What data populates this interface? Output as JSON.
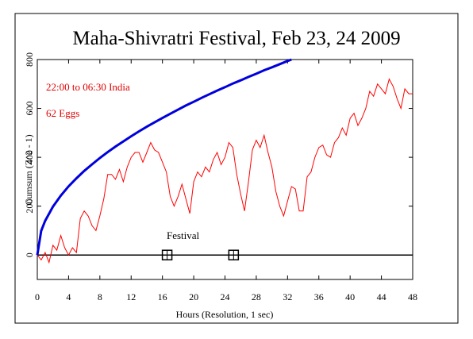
{
  "chart_data": {
    "type": "line",
    "title": "Maha-Shivratri Festival, Feb 23, 24 2009",
    "xlabel": "Hours (Resolution, 1 sec)",
    "ylabel": "Cumsum (Z^2 - 1)",
    "annotations": [
      "22:00 to 06:30 India",
      "62 Eggs",
      "Festival"
    ],
    "xlim": [
      0,
      48
    ],
    "ylim": [
      -100,
      800
    ],
    "xticks": [
      0,
      4,
      8,
      12,
      16,
      20,
      24,
      28,
      32,
      36,
      40,
      44,
      48
    ],
    "yticks": [
      0,
      200,
      400,
      600,
      800
    ],
    "series": [
      {
        "color": "#ff0000",
        "x": [
          0,
          0.5,
          1,
          1.5,
          2,
          2.5,
          3,
          3.5,
          4,
          4.5,
          5,
          5.5,
          6,
          6.5,
          7,
          7.5,
          8,
          8.5,
          9,
          9.5,
          10,
          10.5,
          11,
          11.5,
          12,
          12.5,
          13,
          13.5,
          14,
          14.5,
          15,
          15.5,
          16,
          16.5,
          17,
          17.5,
          18,
          18.5,
          19,
          19.5,
          20,
          20.5,
          21,
          21.5,
          22,
          22.5,
          23,
          23.5,
          24,
          24.5,
          25,
          25.5,
          26,
          26.5,
          27,
          27.5,
          28,
          28.5,
          29,
          29.5,
          30,
          30.5,
          31,
          31.5,
          32,
          32.5,
          33,
          33.5,
          34,
          34.5,
          35,
          35.5,
          36,
          36.5,
          37,
          37.5,
          38,
          38.5,
          39,
          39.5,
          40,
          40.5,
          41,
          41.5,
          42,
          42.5,
          43,
          43.5,
          44,
          44.5,
          45,
          45.5,
          46,
          46.5,
          47,
          47.5,
          48
        ],
        "values": [
          0,
          -20,
          10,
          -30,
          40,
          20,
          80,
          30,
          0,
          30,
          10,
          150,
          180,
          160,
          120,
          100,
          160,
          230,
          330,
          330,
          310,
          350,
          300,
          360,
          400,
          420,
          420,
          380,
          420,
          460,
          430,
          420,
          380,
          340,
          240,
          200,
          240,
          290,
          230,
          170,
          300,
          340,
          320,
          360,
          340,
          390,
          420,
          370,
          400,
          460,
          440,
          330,
          250,
          180,
          300,
          430,
          470,
          440,
          490,
          420,
          360,
          260,
          200,
          160,
          220,
          280,
          270,
          180,
          180,
          320,
          340,
          400,
          440,
          450,
          410,
          400,
          460,
          480,
          520,
          490,
          560,
          580,
          530,
          560,
          600,
          670,
          650,
          700,
          680,
          660,
          720,
          690,
          640,
          600,
          680,
          660,
          660
        ]
      },
      {
        "color": "#0000dd",
        "x": [
          0,
          0.5,
          1,
          2,
          3,
          4,
          5,
          6,
          7,
          8,
          9,
          10,
          11,
          12,
          13,
          14,
          15,
          16,
          17,
          18,
          19,
          20,
          21,
          22,
          23,
          24,
          25,
          26,
          27,
          28,
          29,
          30,
          31,
          32,
          32.5
        ],
        "values": [
          0,
          99,
          140,
          198,
          243,
          281,
          314,
          344,
          371,
          397,
          421,
          444,
          465,
          486,
          506,
          525,
          543,
          561,
          578,
          595,
          612,
          627,
          643,
          658,
          673,
          687,
          702,
          715,
          729,
          742,
          756,
          768,
          781,
          794,
          800
        ]
      }
    ],
    "markers": {
      "x": [
        16.6,
        25.1
      ],
      "values": [
        0,
        0
      ]
    }
  }
}
